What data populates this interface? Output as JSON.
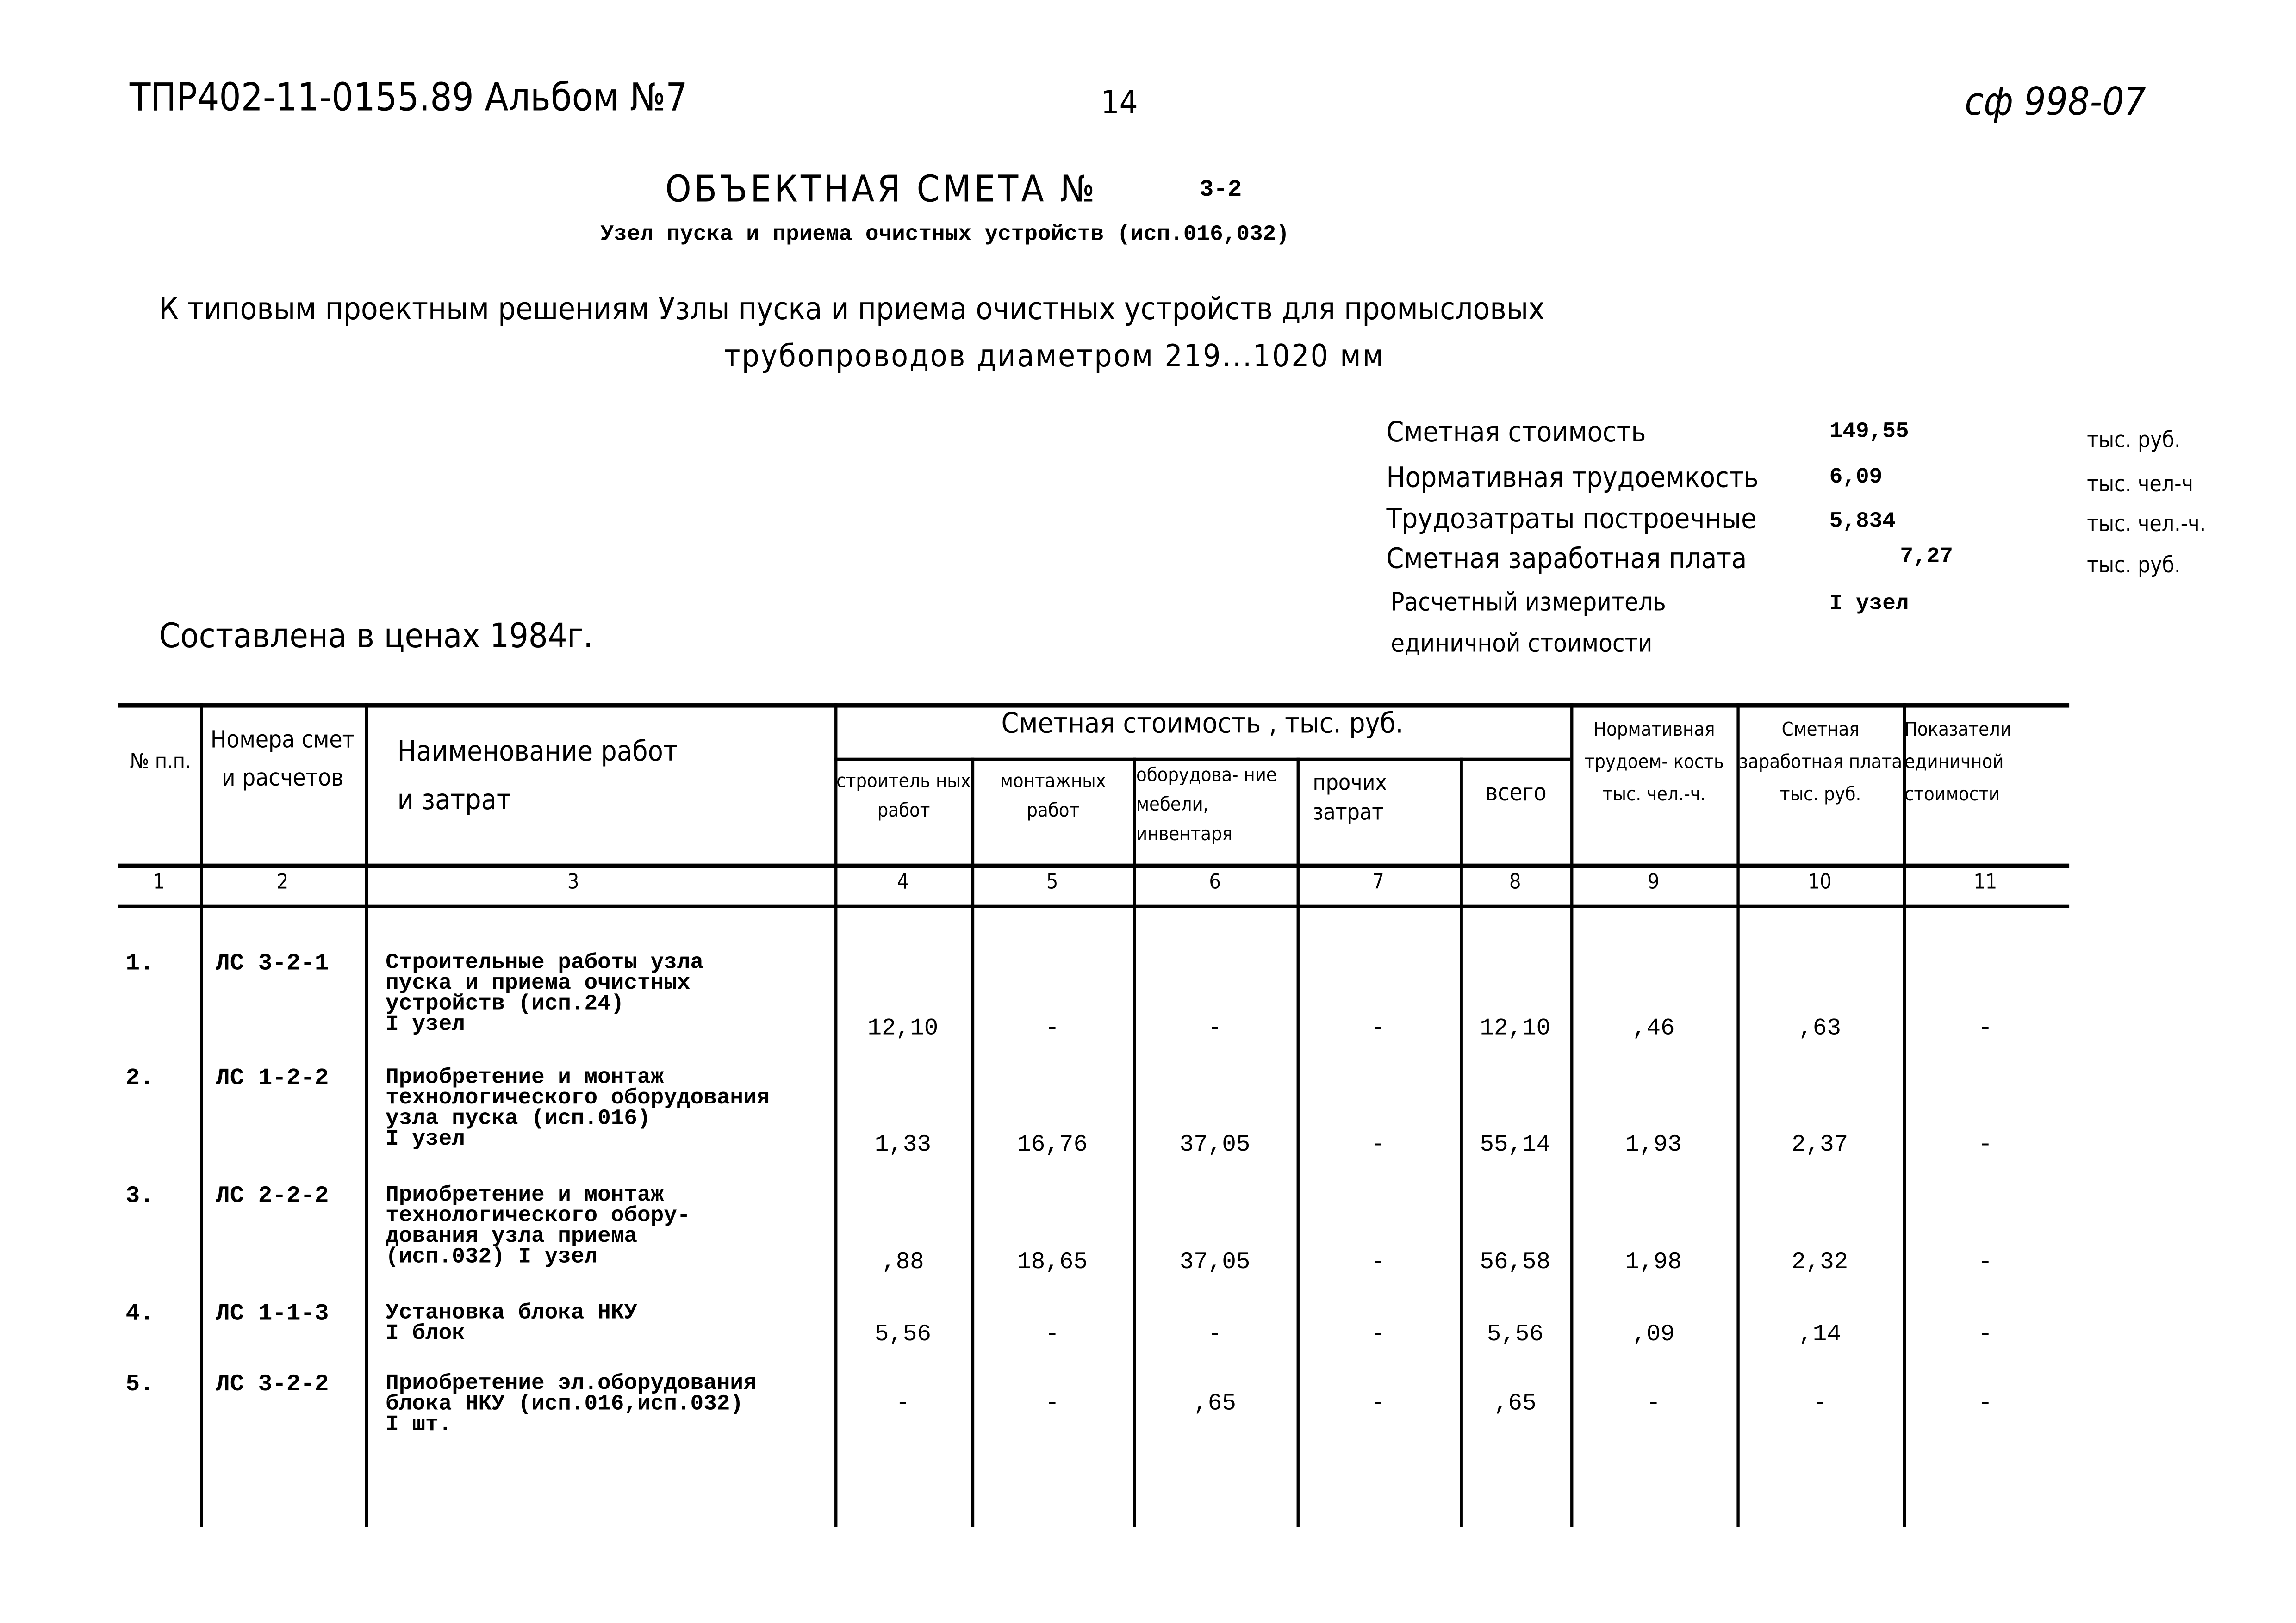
{
  "header": {
    "doc_code": "ТПР402-11-0155.89 Альбом №7",
    "page_number": "14",
    "handwritten_mark": "сф 998-07",
    "title": "ОБЪЕКТНАЯ СМЕТА №",
    "title_number": "3-2",
    "subtitle": "Узел пуска и приема очистных устройств (исп.016,032)",
    "project_line1": "К типовым проектным решениям  Узлы пуска и приема очистных устройств для промысловых",
    "project_line2": "трубопроводов диаметром 219...1020 мм",
    "prices_note": "Составлена в ценах 1984г."
  },
  "summary": [
    {
      "label": "Сметная   стоимость",
      "value": "149,55",
      "unit": "тыс. руб."
    },
    {
      "label": "Нормативная трудоемкость",
      "value": "6,09",
      "unit": "тыс. чел-ч"
    },
    {
      "label": "Трудозатраты построечные",
      "value": "5,834",
      "unit": "тыс. чел.-ч."
    },
    {
      "label": "Сметная заработная плата",
      "value": "7,27",
      "unit": "тыс. руб."
    },
    {
      "label": "Расчетный   измеритель",
      "value": "I узел",
      "unit": ""
    },
    {
      "label": "единичной   стоимости",
      "value": "",
      "unit": ""
    }
  ],
  "table": {
    "headers": {
      "c1": "№ п.п.",
      "c2": "Номера смет и расчетов",
      "c3": "Наименование работ и затрат",
      "group": "Сметная стоимость , тыс. руб.",
      "c4": "строитель ных работ",
      "c5": "монтажных работ",
      "c6": "оборудова- ние мебели, инвентаря",
      "c7": "прочих затрат",
      "c8": "всего",
      "c9": "Нормативная трудоем- кость тыс. чел.-ч.",
      "c10": "Сметная заработная плата тыс. руб.",
      "c11": "Показатели единичной стоимости"
    },
    "column_numbers": [
      "1",
      "2",
      "3",
      "4",
      "5",
      "6",
      "7",
      "8",
      "9",
      "10",
      "11"
    ],
    "rows": [
      {
        "n": "1.",
        "code": "ЛС 3-2-1",
        "name": "Строительные работы узла\nпуска и приема очистных\nустройств (исп.24)\nI узел",
        "c4": "12,10",
        "c5": "-",
        "c6": "-",
        "c7": "-",
        "c8": "12,10",
        "c9": ",46",
        "c10": ",63",
        "c11": "-"
      },
      {
        "n": "2.",
        "code": "ЛС 1-2-2",
        "name": "Приобретение и монтаж\nтехнологического оборудования\nузла пуска (исп.016)\nI узел",
        "c4": "1,33",
        "c5": "16,76",
        "c6": "37,05",
        "c7": "-",
        "c8": "55,14",
        "c9": "1,93",
        "c10": "2,37",
        "c11": "-"
      },
      {
        "n": "3.",
        "code": "ЛС 2-2-2",
        "name": "Приобретение и монтаж\nтехнологического обору-\nдования узла приема\n(исп.032) I узел",
        "c4": ",88",
        "c5": "18,65",
        "c6": "37,05",
        "c7": "-",
        "c8": "56,58",
        "c9": "1,98",
        "c10": "2,32",
        "c11": "-"
      },
      {
        "n": "4.",
        "code": "ЛС 1-1-3",
        "name": "Установка блока НКУ\nI блок",
        "c4": "5,56",
        "c5": "-",
        "c6": "-",
        "c7": "-",
        "c8": "5,56",
        "c9": ",09",
        "c10": ",14",
        "c11": "-"
      },
      {
        "n": "5.",
        "code": "ЛС 3-2-2",
        "name": "Приобретение эл.оборудования\nблока НКУ (исп.016,исп.032)\nI шт.",
        "c4": "-",
        "c5": "-",
        "c6": ",65",
        "c7": "-",
        "c8": ",65",
        "c9": "-",
        "c10": "-",
        "c11": "-"
      }
    ]
  }
}
